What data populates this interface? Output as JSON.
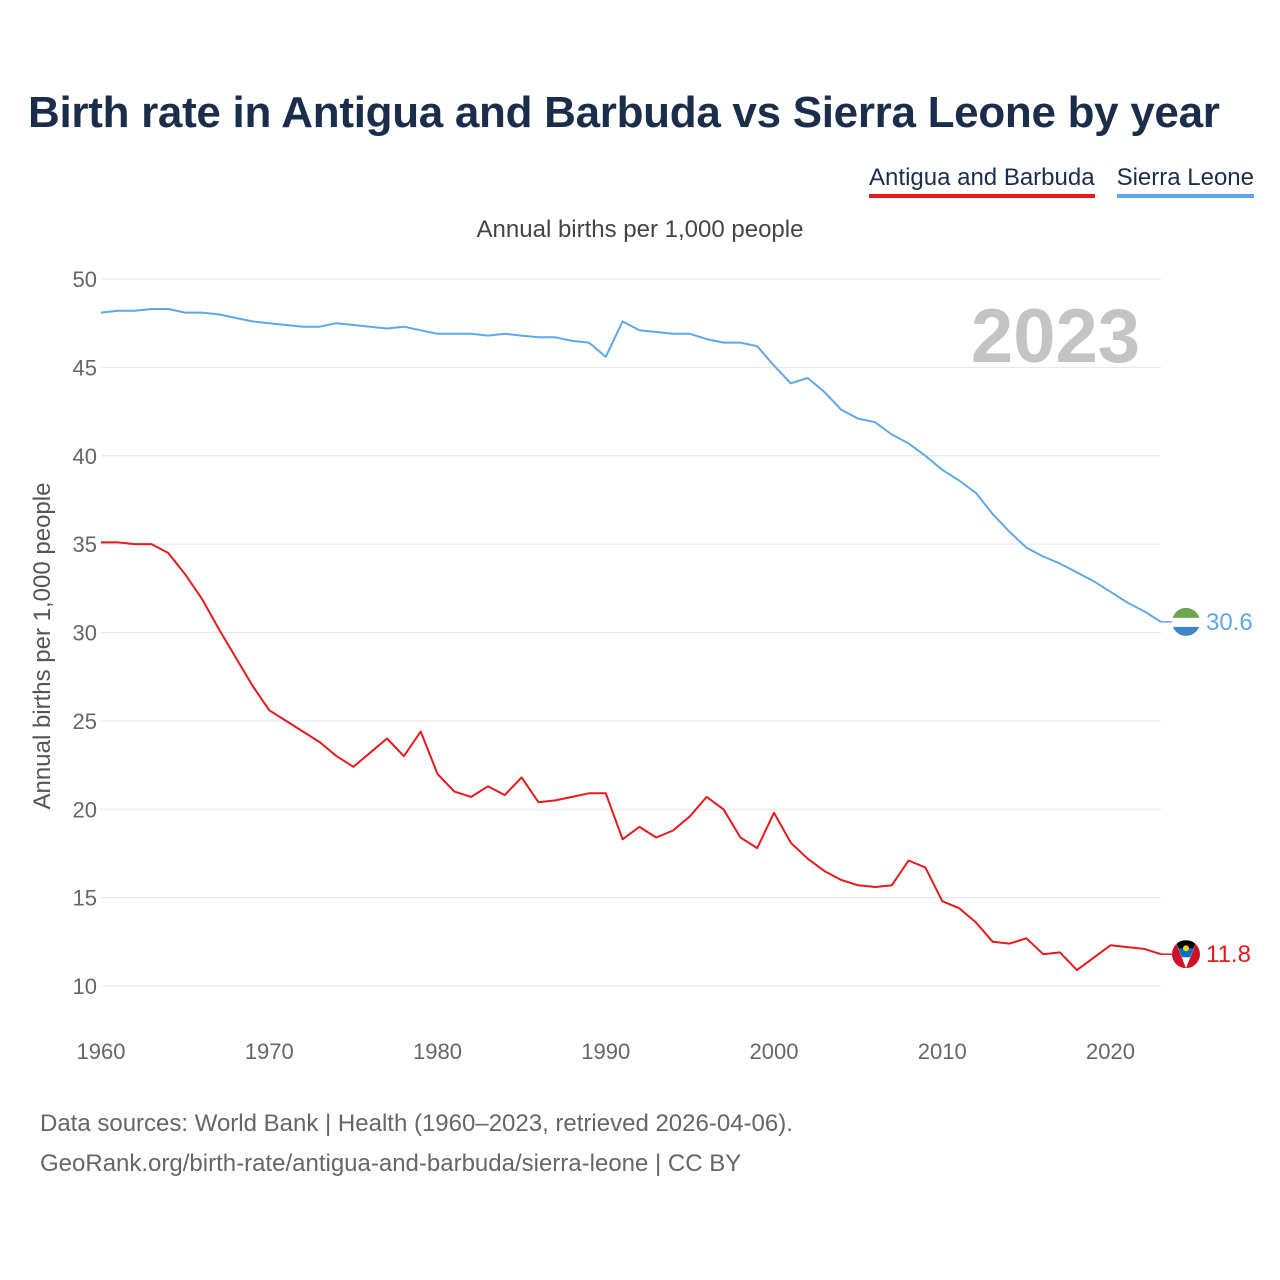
{
  "title": "Birth rate in Antigua and Barbuda vs Sierra Leone by year",
  "legend": [
    {
      "name": "Antigua and Barbuda",
      "color": "#e41a1c"
    },
    {
      "name": "Sierra Leone",
      "color": "#5fa8e8"
    }
  ],
  "subtitle": "Annual births per 1,000 people",
  "year_watermark": "2023",
  "footer": {
    "line1": "Data sources: World Bank | Health (1960–2023, retrieved 2026-04-06).",
    "line2": "GeoRank.org/birth-rate/antigua-and-barbuda/sierra-leone | CC BY"
  },
  "chart_data": {
    "type": "line",
    "title": "Birth rate in Antigua and Barbuda vs Sierra Leone by year",
    "xlabel": "",
    "ylabel": "Annual births per 1,000 people",
    "xlim": [
      1960,
      2023
    ],
    "ylim": [
      10,
      50
    ],
    "xticks": [
      1960,
      1970,
      1980,
      1990,
      2000,
      2010,
      2020
    ],
    "yticks": [
      10,
      15,
      20,
      25,
      30,
      35,
      40,
      45,
      50
    ],
    "grid": true,
    "legend_position": "top-right",
    "x": [
      1960,
      1961,
      1962,
      1963,
      1964,
      1965,
      1966,
      1967,
      1968,
      1969,
      1970,
      1971,
      1972,
      1973,
      1974,
      1975,
      1976,
      1977,
      1978,
      1979,
      1980,
      1981,
      1982,
      1983,
      1984,
      1985,
      1986,
      1987,
      1988,
      1989,
      1990,
      1991,
      1992,
      1993,
      1994,
      1995,
      1996,
      1997,
      1998,
      1999,
      2000,
      2001,
      2002,
      2003,
      2004,
      2005,
      2006,
      2007,
      2008,
      2009,
      2010,
      2011,
      2012,
      2013,
      2014,
      2015,
      2016,
      2017,
      2018,
      2019,
      2020,
      2021,
      2022,
      2023
    ],
    "series": [
      {
        "name": "Antigua and Barbuda",
        "color": "#e41a1c",
        "end_label": "11.8",
        "values": [
          35.1,
          35.1,
          35.0,
          35.0,
          34.5,
          33.3,
          31.9,
          30.2,
          28.6,
          27.0,
          25.6,
          25.0,
          24.4,
          23.8,
          23.0,
          22.4,
          23.2,
          24.0,
          23.0,
          24.4,
          22.0,
          21.0,
          20.7,
          21.3,
          20.8,
          21.8,
          20.4,
          20.5,
          20.7,
          20.9,
          20.9,
          18.3,
          19.0,
          18.4,
          18.8,
          19.6,
          20.7,
          20.0,
          18.4,
          17.8,
          19.8,
          18.1,
          17.2,
          16.5,
          16.0,
          15.7,
          15.6,
          15.7,
          17.1,
          16.7,
          14.8,
          14.4,
          13.6,
          12.5,
          12.4,
          12.7,
          11.8,
          11.9,
          10.9,
          11.6,
          12.3,
          12.2,
          12.1,
          11.8
        ]
      },
      {
        "name": "Sierra Leone",
        "color": "#5fa8e8",
        "end_label": "30.6",
        "values": [
          48.1,
          48.2,
          48.2,
          48.3,
          48.3,
          48.1,
          48.1,
          48.0,
          47.8,
          47.6,
          47.5,
          47.4,
          47.3,
          47.3,
          47.5,
          47.4,
          47.3,
          47.2,
          47.3,
          47.1,
          46.9,
          46.9,
          46.9,
          46.8,
          46.9,
          46.8,
          46.7,
          46.7,
          46.5,
          46.4,
          45.6,
          47.6,
          47.1,
          47.0,
          46.9,
          46.9,
          46.6,
          46.4,
          46.4,
          46.2,
          45.1,
          44.1,
          44.4,
          43.6,
          42.6,
          42.1,
          41.9,
          41.2,
          40.7,
          40.0,
          39.2,
          38.6,
          37.9,
          36.7,
          35.7,
          34.8,
          34.3,
          33.9,
          33.4,
          32.9,
          32.3,
          31.7,
          31.2,
          30.6
        ]
      }
    ]
  }
}
